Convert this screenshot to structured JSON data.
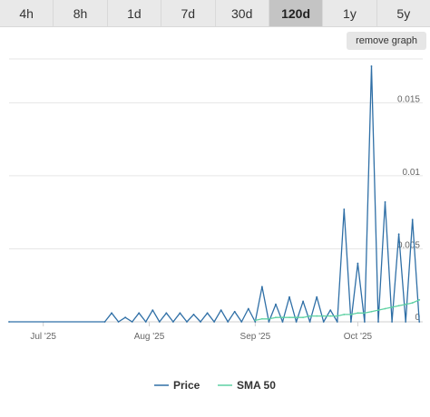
{
  "tabs": [
    {
      "label": "4h",
      "active": false
    },
    {
      "label": "8h",
      "active": false
    },
    {
      "label": "1d",
      "active": false
    },
    {
      "label": "7d",
      "active": false
    },
    {
      "label": "30d",
      "active": false
    },
    {
      "label": "120d",
      "active": true
    },
    {
      "label": "1y",
      "active": false
    },
    {
      "label": "5y",
      "active": false
    }
  ],
  "remove_graph_label": "remove graph",
  "chart_data": {
    "type": "line",
    "title": "",
    "xlabel": "",
    "ylabel": "",
    "x_ticks": [
      "Jul '25",
      "Aug '25",
      "Sep '25",
      "Oct '25"
    ],
    "y_ticks": [
      "0",
      "0.005",
      "0.01",
      "0.015"
    ],
    "ylim": [
      0,
      0.018
    ],
    "x": [
      "2025-06-21",
      "2025-07-19",
      "2025-07-21",
      "2025-07-23",
      "2025-07-25",
      "2025-07-27",
      "2025-07-29",
      "2025-07-31",
      "2025-08-02",
      "2025-08-04",
      "2025-08-06",
      "2025-08-08",
      "2025-08-10",
      "2025-08-12",
      "2025-08-14",
      "2025-08-16",
      "2025-08-18",
      "2025-08-20",
      "2025-08-22",
      "2025-08-24",
      "2025-08-26",
      "2025-08-28",
      "2025-08-30",
      "2025-09-01",
      "2025-09-03",
      "2025-09-05",
      "2025-09-07",
      "2025-09-09",
      "2025-09-11",
      "2025-09-13",
      "2025-09-15",
      "2025-09-17",
      "2025-09-19",
      "2025-09-21",
      "2025-09-23",
      "2025-09-25",
      "2025-09-27",
      "2025-09-29",
      "2025-10-01",
      "2025-10-03",
      "2025-10-05",
      "2025-10-07",
      "2025-10-09",
      "2025-10-11",
      "2025-10-13",
      "2025-10-15",
      "2025-10-17",
      "2025-10-19"
    ],
    "series": [
      {
        "name": "Price",
        "color": "#2f6fa6",
        "values": [
          0,
          0,
          0.0006,
          0,
          0.0003,
          0,
          0.0006,
          0,
          0.0008,
          0,
          0.0006,
          0,
          0.0006,
          0,
          0.0005,
          0,
          0.0006,
          0,
          0.0008,
          0,
          0.0007,
          0,
          0.0009,
          0,
          0.0024,
          0,
          0.0012,
          0,
          0.0017,
          0,
          0.0014,
          0,
          0.0017,
          0,
          0.0008,
          0,
          0.0077,
          0,
          0.004,
          0,
          0.0175,
          0,
          0.0082,
          0,
          0.006,
          0,
          0.007,
          0
        ]
      },
      {
        "name": "SMA 50",
        "color": "#5ed1a3",
        "values": [
          null,
          null,
          null,
          null,
          null,
          null,
          null,
          null,
          null,
          null,
          null,
          null,
          null,
          null,
          null,
          null,
          null,
          null,
          null,
          null,
          null,
          null,
          null,
          0.0001,
          0.0002,
          0.0002,
          0.0003,
          0.0003,
          0.0003,
          0.0003,
          0.0003,
          0.0004,
          0.0004,
          0.0004,
          0.0004,
          0.0004,
          0.0005,
          0.0005,
          0.0006,
          0.0006,
          0.0007,
          0.0008,
          0.0009,
          0.001,
          0.0011,
          0.0012,
          0.0013,
          0.0015
        ]
      }
    ],
    "legend_position": "bottom-center",
    "grid": true
  }
}
